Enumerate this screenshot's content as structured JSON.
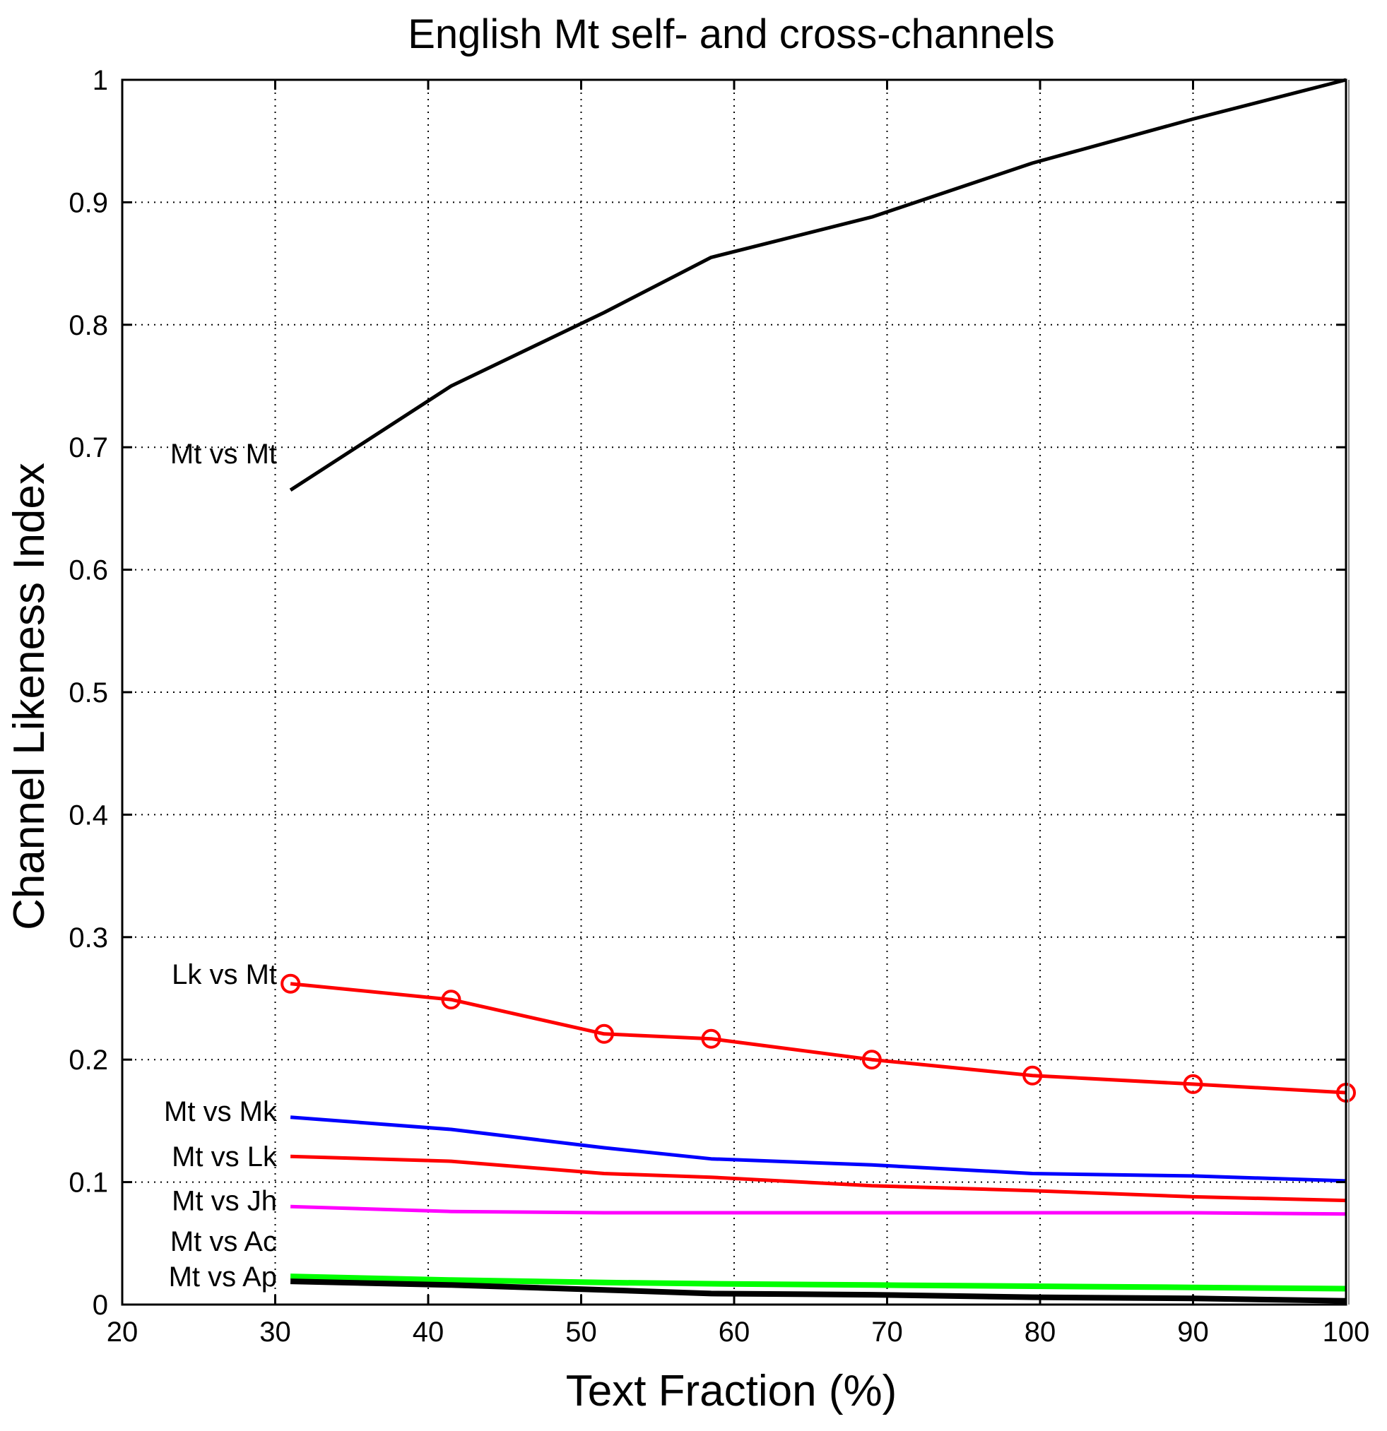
{
  "chart_data": {
    "type": "line",
    "title": "English Mt self- and cross-channels",
    "xlabel": "Text Fraction (%)",
    "ylabel": "Channel Likeness Index",
    "xlim": [
      20,
      100
    ],
    "ylim": [
      0,
      1
    ],
    "grid": true,
    "xticks": [
      20,
      30,
      40,
      50,
      60,
      70,
      80,
      90,
      100
    ],
    "yticks": [
      0,
      0.1,
      0.2,
      0.3,
      0.4,
      0.5,
      0.6,
      0.7,
      0.8,
      0.9,
      1
    ],
    "xtick_labels": [
      "20",
      "30",
      "40",
      "50",
      "60",
      "70",
      "80",
      "90",
      "100"
    ],
    "ytick_labels": [
      "0",
      "0.1",
      "0.2",
      "0.3",
      "0.4",
      "0.5",
      "0.6",
      "0.7",
      "0.8",
      "0.9",
      "1"
    ],
    "series": [
      {
        "name": "Mt vs Mt",
        "color": "#000000",
        "marker": "none",
        "x": [
          31,
          41.5,
          51.5,
          58.5,
          69,
          79.5,
          90,
          100
        ],
        "values": [
          0.665,
          0.75,
          0.81,
          0.855,
          0.888,
          0.932,
          0.968,
          1.0
        ]
      },
      {
        "name": "Lk vs Mt",
        "color": "#ff0000",
        "marker": "circle",
        "x": [
          31,
          41.5,
          51.5,
          58.5,
          69,
          79.5,
          90,
          100
        ],
        "values": [
          0.262,
          0.249,
          0.221,
          0.217,
          0.2,
          0.187,
          0.18,
          0.173
        ]
      },
      {
        "name": "Mt vs Mk",
        "color": "#0000ff",
        "marker": "none",
        "x": [
          31,
          41.5,
          51.5,
          58.5,
          69,
          79.5,
          90,
          100
        ],
        "values": [
          0.153,
          0.143,
          0.128,
          0.119,
          0.114,
          0.107,
          0.105,
          0.101
        ]
      },
      {
        "name": "Mt vs Lk",
        "color": "#ff0000",
        "marker": "none",
        "x": [
          31,
          41.5,
          51.5,
          58.5,
          69,
          79.5,
          90,
          100
        ],
        "values": [
          0.121,
          0.117,
          0.107,
          0.104,
          0.097,
          0.093,
          0.088,
          0.085
        ]
      },
      {
        "name": "Mt vs Jh",
        "color": "#ff00ff",
        "marker": "none",
        "x": [
          31,
          41.5,
          51.5,
          58.5,
          69,
          79.5,
          90,
          100
        ],
        "values": [
          0.08,
          0.076,
          0.075,
          0.075,
          0.075,
          0.075,
          0.075,
          0.074
        ]
      },
      {
        "name": "Mt vs Ac",
        "color": "#00ff00",
        "marker": "none",
        "x": [
          31,
          41.5,
          51.5,
          58.5,
          69,
          79.5,
          90,
          100
        ],
        "values": [
          0.023,
          0.02,
          0.018,
          0.017,
          0.016,
          0.015,
          0.014,
          0.013
        ]
      },
      {
        "name": "Mt vs Ap",
        "color": "#000000",
        "marker": "none",
        "x": [
          31,
          41.5,
          51.5,
          58.5,
          69,
          79.5,
          90,
          100
        ],
        "values": [
          0.019,
          0.016,
          0.012,
          0.009,
          0.008,
          0.006,
          0.005,
          0.003
        ]
      }
    ],
    "annotations": [
      "Mt vs Mt",
      "Lk vs Mt",
      "Mt vs Mk",
      "Mt vs Lk",
      "Mt vs Jh",
      "Mt vs Ac",
      "Mt vs Ap"
    ]
  }
}
